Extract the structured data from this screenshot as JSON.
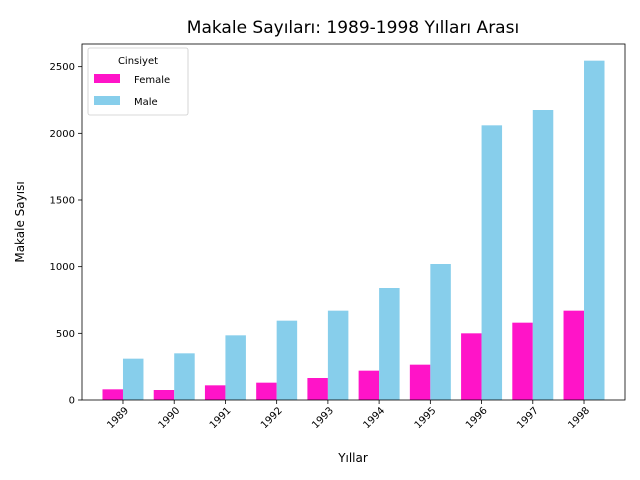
{
  "chart_data": {
    "type": "bar",
    "title": "Makale Sayıları: 1989-1998 Yılları Arası",
    "xlabel": "Yıllar",
    "ylabel": "Makale Sayısı",
    "categories": [
      "1989",
      "1990",
      "1991",
      "1992",
      "1993",
      "1994",
      "1995",
      "1996",
      "1997",
      "1998"
    ],
    "series": [
      {
        "name": "Female",
        "color": "#ff14c8",
        "values": [
          80,
          75,
          110,
          130,
          165,
          220,
          265,
          500,
          580,
          670
        ]
      },
      {
        "name": "Male",
        "color": "#87ceeb",
        "values": [
          310,
          350,
          485,
          595,
          670,
          840,
          1020,
          2060,
          2175,
          2545
        ]
      }
    ],
    "ylim": [
      0,
      2670
    ],
    "yticks": [
      0,
      500,
      1000,
      1500,
      2000,
      2500
    ],
    "legend": {
      "title": "Cinsiyet",
      "position": "top-left"
    },
    "grid": false
  }
}
